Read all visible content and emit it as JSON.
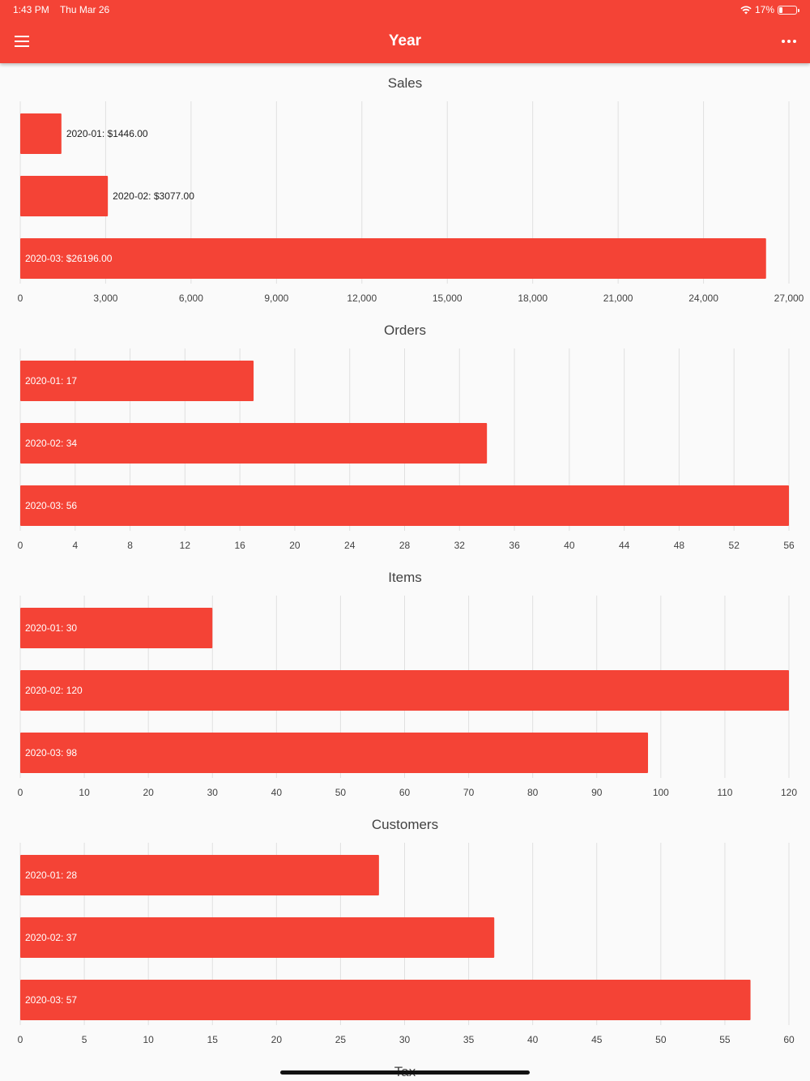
{
  "status_bar": {
    "time": "1:43 PM",
    "date": "Thu Mar 26",
    "battery": "17%"
  },
  "appbar": {
    "title": "Year",
    "menu_icon": "hamburger-menu-icon",
    "more_icon": "more-horizontal-icon"
  },
  "colors": {
    "primary": "#f44336",
    "bar": "#f44336",
    "grid": "#e0e0e0",
    "text": "#424242"
  },
  "chart_data": [
    {
      "type": "bar",
      "orientation": "horizontal",
      "title": "Sales",
      "categories": [
        "2020-01",
        "2020-02",
        "2020-03"
      ],
      "values": [
        1446,
        3077,
        26196
      ],
      "labels": [
        "2020-01: $1446.00",
        "2020-02: $3077.00",
        "2020-03: $26196.00"
      ],
      "xlim": [
        0,
        27000
      ],
      "ticks": [
        0,
        3000,
        6000,
        9000,
        12000,
        15000,
        18000,
        21000,
        24000,
        27000
      ],
      "tick_labels": [
        "0",
        "3,000",
        "6,000",
        "9,000",
        "12,000",
        "15,000",
        "18,000",
        "21,000",
        "24,000",
        "27,000"
      ],
      "grid": true
    },
    {
      "type": "bar",
      "orientation": "horizontal",
      "title": "Orders",
      "categories": [
        "2020-01",
        "2020-02",
        "2020-03"
      ],
      "values": [
        17,
        34,
        56
      ],
      "labels": [
        "2020-01: 17",
        "2020-02: 34",
        "2020-03: 56"
      ],
      "xlim": [
        0,
        56
      ],
      "ticks": [
        0,
        4,
        8,
        12,
        16,
        20,
        24,
        28,
        32,
        36,
        40,
        44,
        48,
        52,
        56
      ],
      "tick_labels": [
        "0",
        "4",
        "8",
        "12",
        "16",
        "20",
        "24",
        "28",
        "32",
        "36",
        "40",
        "44",
        "48",
        "52",
        "56"
      ],
      "grid": true
    },
    {
      "type": "bar",
      "orientation": "horizontal",
      "title": "Items",
      "categories": [
        "2020-01",
        "2020-02",
        "2020-03"
      ],
      "values": [
        30,
        120,
        98
      ],
      "labels": [
        "2020-01: 30",
        "2020-02: 120",
        "2020-03: 98"
      ],
      "xlim": [
        0,
        120
      ],
      "ticks": [
        0,
        10,
        20,
        30,
        40,
        50,
        60,
        70,
        80,
        90,
        100,
        110,
        120
      ],
      "tick_labels": [
        "0",
        "10",
        "20",
        "30",
        "40",
        "50",
        "60",
        "70",
        "80",
        "90",
        "100",
        "110",
        "120"
      ],
      "grid": true
    },
    {
      "type": "bar",
      "orientation": "horizontal",
      "title": "Customers",
      "categories": [
        "2020-01",
        "2020-02",
        "2020-03"
      ],
      "values": [
        28,
        37,
        57
      ],
      "labels": [
        "2020-01: 28",
        "2020-02: 37",
        "2020-03: 57"
      ],
      "xlim": [
        0,
        60
      ],
      "ticks": [
        0,
        5,
        10,
        15,
        20,
        25,
        30,
        35,
        40,
        45,
        50,
        55,
        60
      ],
      "tick_labels": [
        "0",
        "5",
        "10",
        "15",
        "20",
        "25",
        "30",
        "35",
        "40",
        "45",
        "50",
        "55",
        "60"
      ],
      "grid": true
    },
    {
      "type": "bar",
      "orientation": "horizontal",
      "title": "Tax",
      "categories": [],
      "values": [],
      "labels": []
    }
  ]
}
